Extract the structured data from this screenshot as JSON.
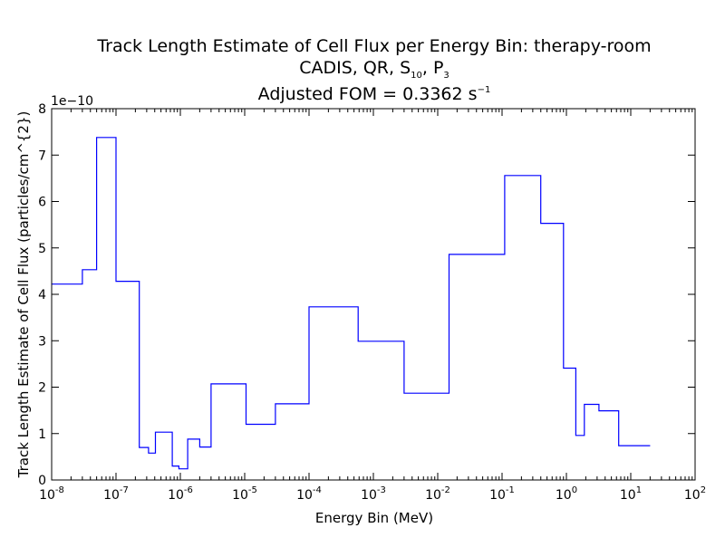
{
  "chart_data": {
    "type": "line",
    "title_line1": "Track Length Estimate of Cell Flux per Energy Bin: therapy-room",
    "title_line2": {
      "prefix": "CADIS, QR, S",
      "s_sub": "10",
      "sep": ", P",
      "p_sub": "3"
    },
    "title_line3": {
      "text": "Adjusted FOM = 0.3362 s",
      "sup": "−1"
    },
    "xlabel": "Energy Bin (MeV)",
    "ylabel": "Track Length Estimate of Cell Flux (particles/cm^{2})",
    "y_offset_label": "1e−10",
    "xscale": "log",
    "xlim": [
      1e-08,
      100
    ],
    "ylim": [
      0,
      8
    ],
    "x_ticks": [
      {
        "base": "10",
        "exp": "-8"
      },
      {
        "base": "10",
        "exp": "-7"
      },
      {
        "base": "10",
        "exp": "-6"
      },
      {
        "base": "10",
        "exp": "-5"
      },
      {
        "base": "10",
        "exp": "-4"
      },
      {
        "base": "10",
        "exp": "-3"
      },
      {
        "base": "10",
        "exp": "-2"
      },
      {
        "base": "10",
        "exp": "-1"
      },
      {
        "base": "10",
        "exp": "0"
      },
      {
        "base": "10",
        "exp": "1"
      },
      {
        "base": "10",
        "exp": "2"
      }
    ],
    "y_ticks": [
      "0",
      "1",
      "2",
      "3",
      "4",
      "5",
      "6",
      "7",
      "8"
    ],
    "series_color": "#0000ff",
    "series": [
      {
        "step": "post",
        "x": [
          1e-08,
          3e-08,
          5e-08,
          1e-07,
          2.3e-07,
          3.2e-07,
          4.1e-07,
          7.5e-07,
          9.5e-07,
          1.3e-06,
          2e-06,
          3e-06,
          1.05e-05,
          3e-05,
          0.0001,
          0.00058,
          0.003,
          0.015,
          0.11,
          0.4,
          0.9,
          1.4,
          1.9,
          3.2,
          6.5,
          20
        ],
        "y": [
          4.22,
          4.53,
          7.38,
          4.28,
          0.7,
          0.58,
          1.03,
          0.3,
          0.24,
          0.88,
          0.71,
          2.07,
          1.2,
          1.64,
          3.73,
          2.99,
          1.87,
          4.86,
          6.56,
          5.53,
          2.41,
          0.96,
          1.63,
          1.49,
          0.74,
          0.74
        ]
      }
    ]
  }
}
